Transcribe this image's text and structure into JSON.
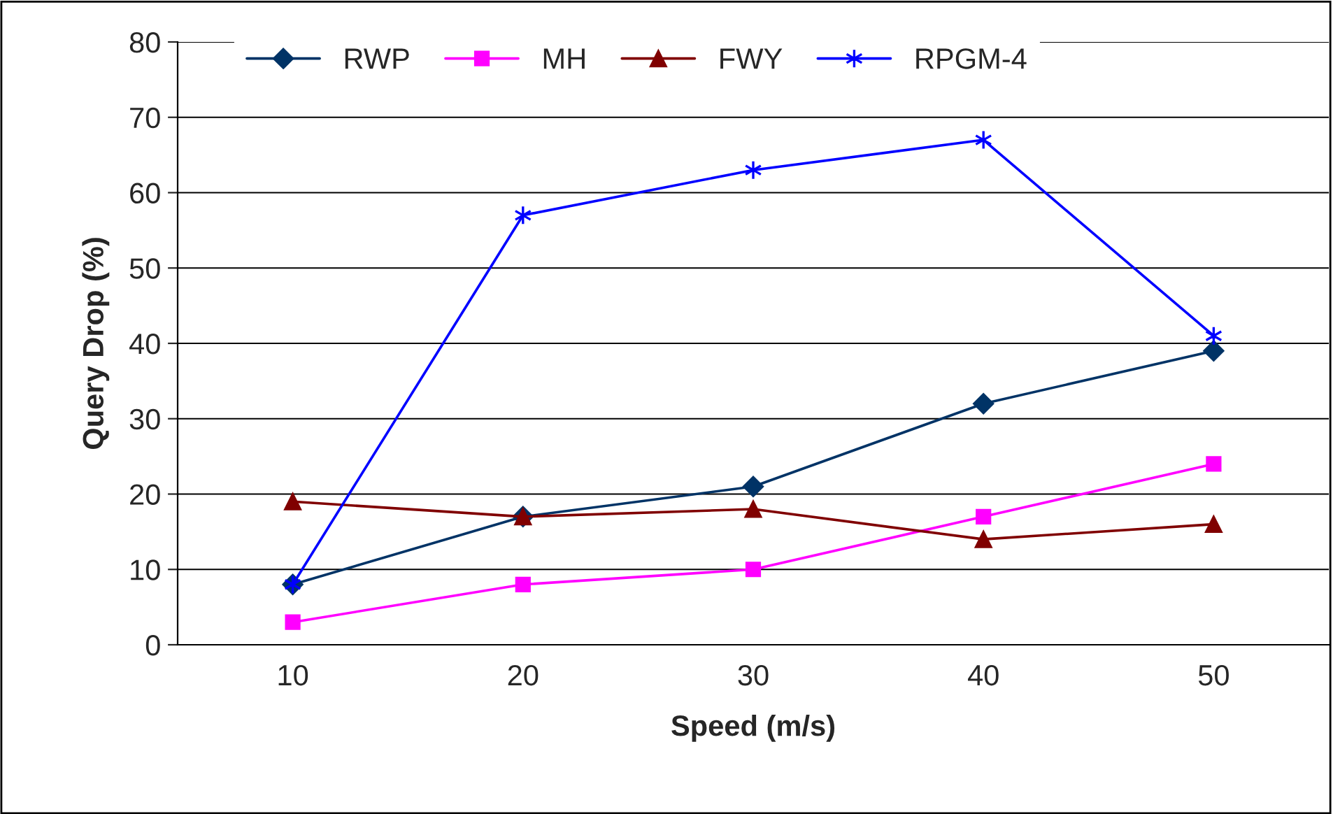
{
  "chart_data": {
    "type": "line",
    "xlabel": "Speed (m/s)",
    "ylabel": "Query Drop (%)",
    "categories": [
      "10",
      "20",
      "30",
      "40",
      "50"
    ],
    "series": [
      {
        "name": "RWP",
        "color": "#003366",
        "marker": "diamond",
        "values": [
          8,
          17,
          21,
          32,
          39
        ]
      },
      {
        "name": "MH",
        "color": "#ff00ff",
        "marker": "square",
        "values": [
          3,
          8,
          10,
          17,
          24
        ]
      },
      {
        "name": "FWY",
        "color": "#800000",
        "marker": "triangle",
        "values": [
          19,
          17,
          18,
          14,
          16
        ]
      },
      {
        "name": "RPGM-4",
        "color": "#0000ff",
        "marker": "cross",
        "values": [
          8,
          57,
          63,
          67,
          41
        ]
      }
    ],
    "ylim": [
      0,
      80
    ],
    "yticks": [
      0,
      10,
      20,
      30,
      40,
      50,
      60,
      70,
      80
    ],
    "grid": "y",
    "legend": "top left",
    "line_style": "solid"
  }
}
